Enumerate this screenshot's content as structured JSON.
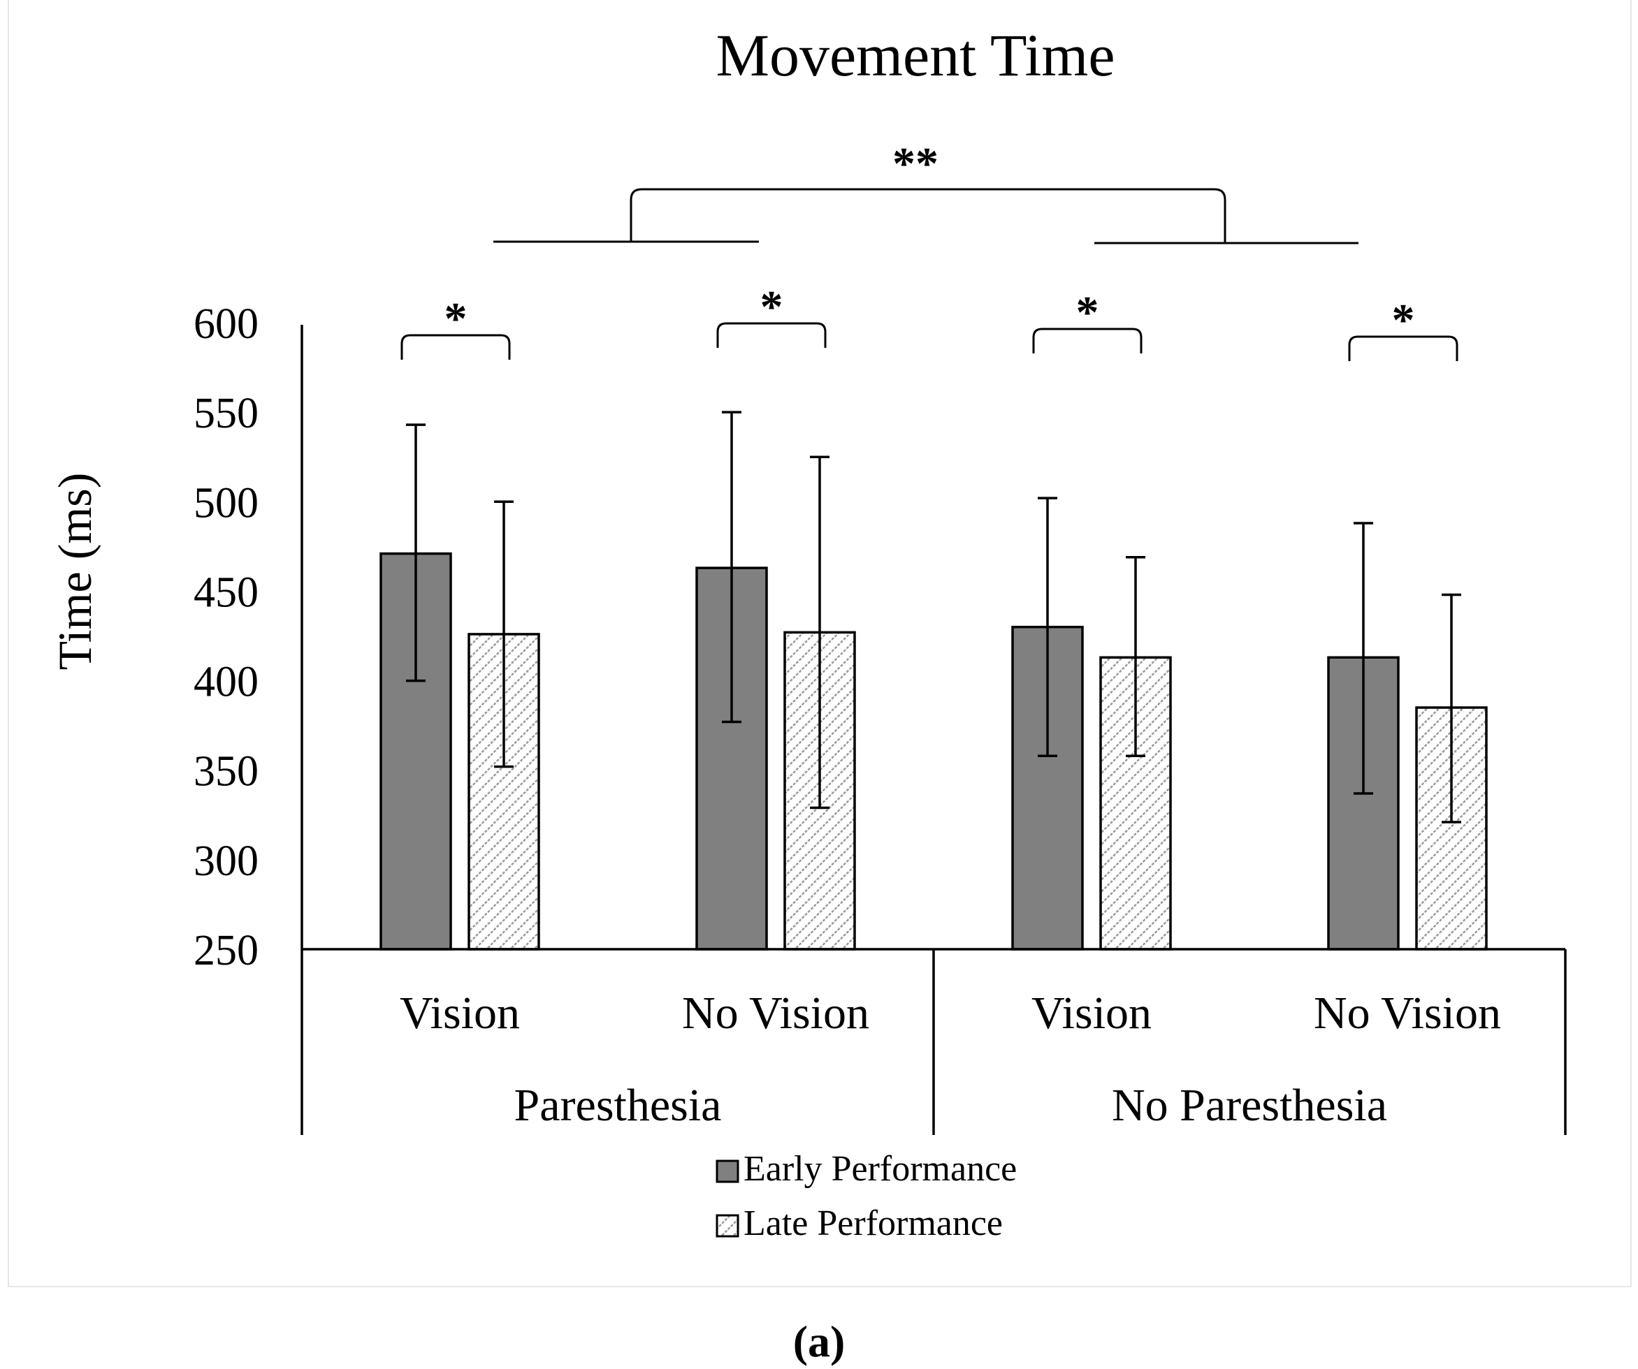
{
  "chart_data": {
    "type": "bar",
    "title": "Movement Time",
    "ylabel": "Time (ms)",
    "xlabel": "",
    "ylim": [
      250,
      600
    ],
    "yticks": [
      "600",
      "550",
      "500",
      "450",
      "400",
      "350",
      "300",
      "250"
    ],
    "groups": [
      "Paresthesia",
      "No Paresthesia"
    ],
    "categories": [
      "Vision",
      "No Vision",
      "Vision",
      "No Vision"
    ],
    "series": [
      {
        "name": "Early Performance",
        "color": "#808080",
        "pattern": "solid",
        "values": [
          471,
          463,
          430,
          413
        ],
        "error_low": [
          400,
          377,
          358,
          337
        ],
        "error_high": [
          543,
          550,
          502,
          488
        ]
      },
      {
        "name": "Late Performance",
        "color": "#ffffff",
        "pattern": "diagonal-hatch",
        "values": [
          426,
          427,
          413,
          385
        ],
        "error_low": [
          352,
          329,
          358,
          321
        ],
        "error_high": [
          500,
          525,
          469,
          448
        ]
      }
    ],
    "annotations": {
      "pair_significance": [
        "*",
        "*",
        "*",
        "*"
      ],
      "group_significance": "**"
    },
    "legend": "bottom-center"
  },
  "caption": "(a)"
}
